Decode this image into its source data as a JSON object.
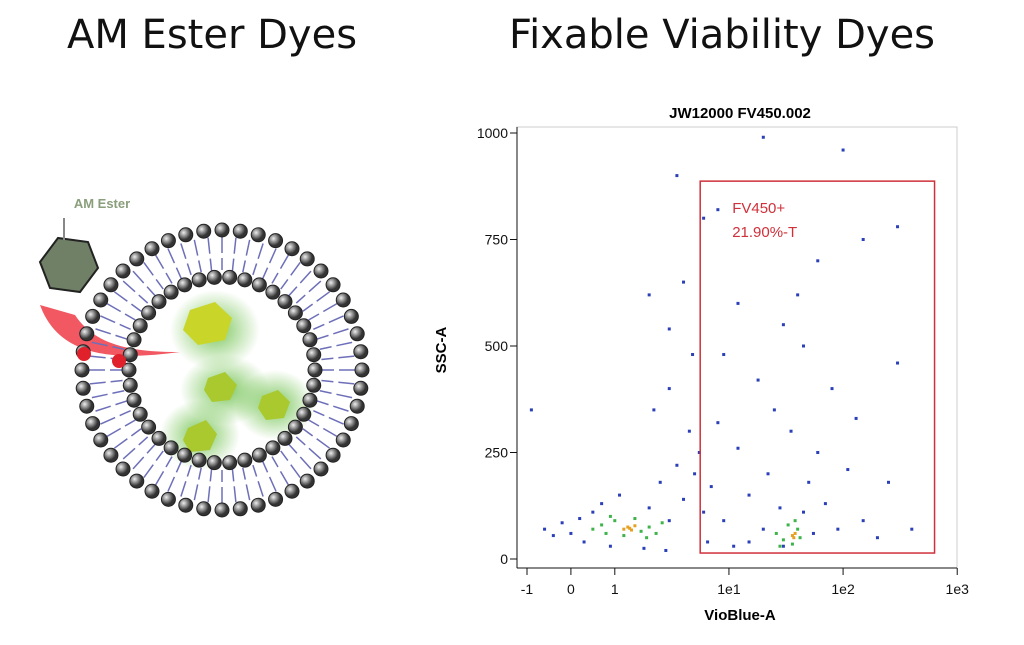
{
  "slide": {
    "left_title": "AM Ester Dyes",
    "right_title": "Fixable Viability Dyes",
    "molecule_label": "AM Ester"
  },
  "chart_data": {
    "type": "scatter",
    "title": "JW12000 FV450.002",
    "x_label": "VioBlue-A",
    "y_label": "SSC-A",
    "x_scale": "logicle",
    "xlim": [
      -1,
      1000
    ],
    "xticks": [
      -1,
      0,
      1,
      {
        "value": 10,
        "label": "1e1"
      },
      {
        "value": 100,
        "label": "1e2"
      },
      {
        "value": 1000,
        "label": "1e3"
      }
    ],
    "ylim": [
      0,
      1000
    ],
    "yticks": [
      0,
      250,
      500,
      750,
      1000
    ],
    "series": [
      {
        "color": "#2a3fb8",
        "x": [
          -0.6,
          -0.4,
          -0.2,
          0,
          0.2,
          0.3,
          0.5,
          0.7,
          0.9,
          1.1,
          2,
          2.5,
          3,
          3.5,
          4,
          4.5,
          5,
          3,
          2.2,
          4.8,
          5.5,
          6,
          7,
          8,
          9,
          12,
          15,
          18,
          20,
          22,
          25,
          28,
          30,
          45,
          50,
          55,
          60,
          70,
          80,
          90,
          110,
          130,
          150,
          200,
          250,
          300,
          12,
          30,
          60,
          150,
          300,
          8,
          3.5,
          20,
          100,
          3,
          4,
          2,
          6,
          -0.9,
          400,
          45,
          35,
          15,
          9,
          40,
          6.5,
          11,
          2.8,
          1.8
        ],
        "y": [
          70,
          55,
          85,
          60,
          95,
          40,
          110,
          130,
          30,
          150,
          120,
          180,
          90,
          220,
          140,
          300,
          200,
          400,
          350,
          480,
          250,
          110,
          170,
          320,
          90,
          260,
          150,
          420,
          70,
          200,
          350,
          120,
          30,
          110,
          180,
          60,
          250,
          130,
          400,
          70,
          210,
          330,
          90,
          50,
          180,
          460,
          600,
          550,
          700,
          750,
          780,
          820,
          900,
          990,
          960,
          540,
          650,
          620,
          800,
          350,
          70,
          500,
          300,
          40,
          480,
          620,
          40,
          30,
          20,
          25
        ]
      },
      {
        "color": "#3db34a",
        "x": [
          0.5,
          0.7,
          0.8,
          1.0,
          1.2,
          1.5,
          1.7,
          2.0,
          2.3,
          0.9,
          1.9,
          2.6,
          26,
          30,
          33,
          36,
          40,
          42,
          28,
          38
        ],
        "y": [
          70,
          80,
          60,
          90,
          55,
          95,
          65,
          75,
          60,
          100,
          50,
          85,
          60,
          45,
          80,
          35,
          70,
          50,
          30,
          90
        ]
      },
      {
        "color": "#e6a020",
        "x": [
          1.2,
          1.3,
          1.4,
          1.5,
          1.35,
          36,
          38,
          37
        ],
        "y": [
          70,
          75,
          68,
          78,
          72,
          55,
          60,
          50
        ]
      }
    ],
    "gate": {
      "label": "FV450+",
      "stat": "21.90%-T",
      "x": [
        5.6,
        633
      ],
      "y": [
        14,
        887
      ],
      "color": "#d0303a"
    }
  }
}
